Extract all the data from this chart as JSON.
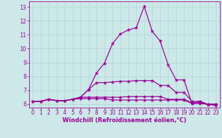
{
  "background_color": "#cde8e8",
  "grid_color": "#b0d8d8",
  "line_color": "#990099",
  "marker_color": "#990099",
  "xlabel": "Windchill (Refroidissement éolien,°C)",
  "xlabel_color": "#990099",
  "tick_color": "#990099",
  "xlim": [
    -0.5,
    23.5
  ],
  "ylim": [
    5.75,
    13.4
  ],
  "yticks": [
    6,
    7,
    8,
    9,
    10,
    11,
    12,
    13
  ],
  "xticks": [
    0,
    1,
    2,
    3,
    4,
    5,
    6,
    7,
    8,
    9,
    10,
    11,
    12,
    13,
    14,
    15,
    16,
    17,
    18,
    19,
    20,
    21,
    22,
    23
  ],
  "series": [
    [
      6.2,
      6.2,
      6.35,
      6.25,
      6.25,
      6.35,
      6.5,
      7.05,
      8.25,
      8.95,
      10.35,
      11.05,
      11.35,
      11.5,
      13.05,
      11.25,
      10.55,
      8.85,
      7.75,
      7.75,
      6.05,
      6.2,
      5.95,
      6.0
    ],
    [
      6.2,
      6.2,
      6.35,
      6.25,
      6.25,
      6.35,
      6.5,
      7.05,
      7.55,
      7.55,
      7.6,
      7.65,
      7.65,
      7.7,
      7.7,
      7.7,
      7.35,
      7.35,
      6.85,
      6.85,
      6.2,
      6.2,
      6.0,
      6.0
    ],
    [
      6.2,
      6.2,
      6.35,
      6.25,
      6.25,
      6.35,
      6.5,
      6.5,
      6.5,
      6.5,
      6.5,
      6.5,
      6.55,
      6.55,
      6.55,
      6.55,
      6.55,
      6.35,
      6.35,
      6.35,
      6.1,
      6.1,
      6.0,
      6.0
    ],
    [
      6.2,
      6.2,
      6.35,
      6.25,
      6.25,
      6.35,
      6.4,
      6.4,
      6.4,
      6.4,
      6.3,
      6.3,
      6.3,
      6.3,
      6.3,
      6.3,
      6.3,
      6.3,
      6.3,
      6.3,
      6.05,
      6.05,
      6.0,
      5.9
    ]
  ],
  "tick_fontsize": 5.5,
  "xlabel_fontsize": 6.0,
  "linewidth": 0.9,
  "markersize": 3.5
}
